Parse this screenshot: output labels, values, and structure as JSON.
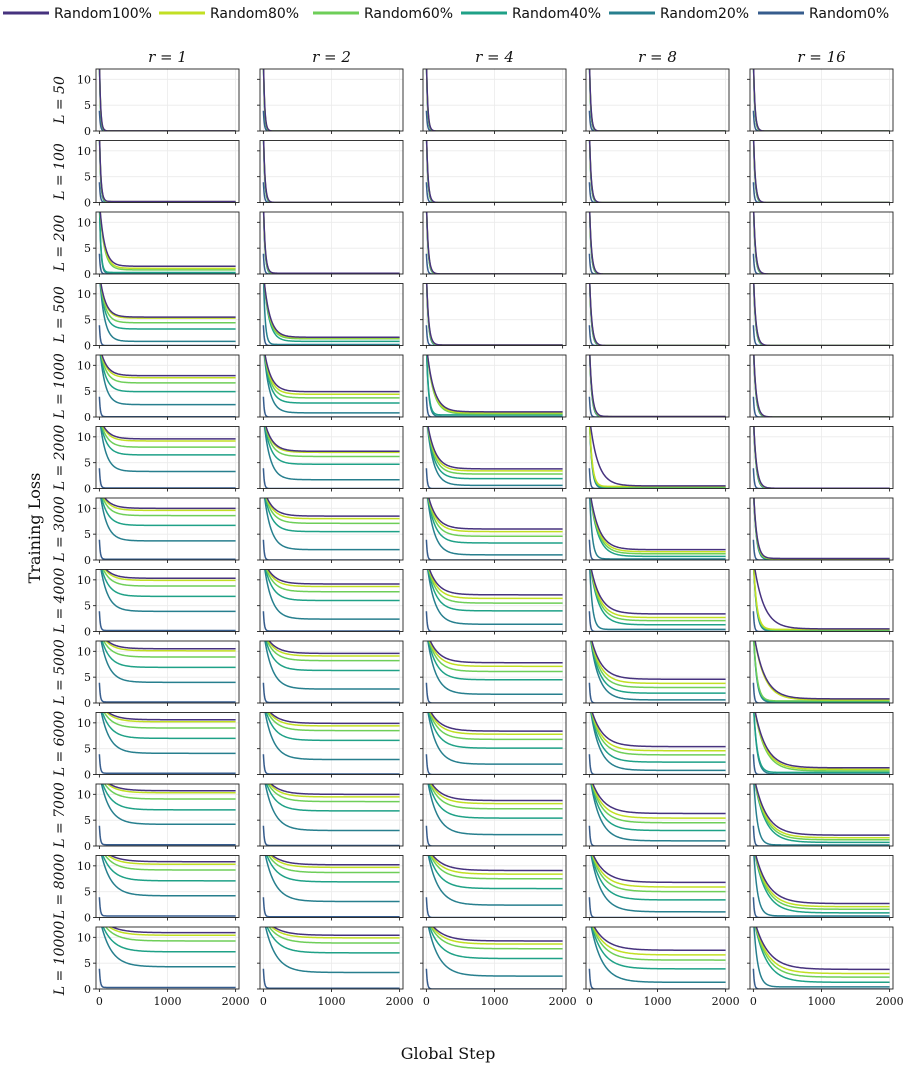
{
  "chart_data": {
    "type": "line",
    "xlabel": "Global Step",
    "ylabel": "Training Loss",
    "xlim": [
      -50,
      2050
    ],
    "ylim": [
      0,
      12
    ],
    "x_ticks": [
      0,
      1000,
      2000
    ],
    "x_tick_labels": [
      "0",
      "1000",
      "2000"
    ],
    "y_ticks": [
      0,
      5,
      10
    ],
    "y_tick_labels": [
      "0",
      "5",
      "10"
    ],
    "grid": true,
    "legend_position": "top",
    "column_labels": [
      "r = 1",
      "r = 2",
      "r = 4",
      "r = 8",
      "r = 16"
    ],
    "row_labels": [
      "L = 50",
      "L = 100",
      "L = 200",
      "L = 500",
      "L = 1000",
      "L = 2000",
      "L = 3000",
      "L = 4000",
      "L = 5000",
      "L = 6000",
      "L = 7000",
      "L = 8000",
      "L = 10000"
    ],
    "series": [
      {
        "name": "Random100%",
        "color": "#46327e"
      },
      {
        "name": "Random80%",
        "color": "#c2df23"
      },
      {
        "name": "Random60%",
        "color": "#6ece58"
      },
      {
        "name": "Random40%",
        "color": "#1fa187"
      },
      {
        "name": "Random20%",
        "color": "#277f8e"
      },
      {
        "name": "Random0%",
        "color": "#365c8d"
      }
    ],
    "final_loss_by_row_col": [
      [
        [
          0.02,
          0.02,
          0.01,
          0.01,
          0.0,
          0.0
        ],
        [
          0.0,
          0.0,
          0.0,
          0.0,
          0.0,
          0.0
        ],
        [
          0.0,
          0.0,
          0.0,
          0.0,
          0.0,
          0.0
        ],
        [
          0.0,
          0.0,
          0.0,
          0.0,
          0.0,
          0.0
        ],
        [
          0.0,
          0.0,
          0.0,
          0.0,
          0.0,
          0.0
        ]
      ],
      [
        [
          0.2,
          0.18,
          0.15,
          0.1,
          0.05,
          0.0
        ],
        [
          0.02,
          0.02,
          0.02,
          0.01,
          0.0,
          0.0
        ],
        [
          0.0,
          0.0,
          0.0,
          0.0,
          0.0,
          0.0
        ],
        [
          0.0,
          0.0,
          0.0,
          0.0,
          0.0,
          0.0
        ],
        [
          0.0,
          0.0,
          0.0,
          0.0,
          0.0,
          0.0
        ]
      ],
      [
        [
          1.5,
          1.1,
          0.8,
          0.3,
          0.1,
          0.0
        ],
        [
          0.15,
          0.13,
          0.1,
          0.05,
          0.02,
          0.0
        ],
        [
          0.02,
          0.02,
          0.01,
          0.0,
          0.0,
          0.0
        ],
        [
          0.0,
          0.0,
          0.0,
          0.0,
          0.0,
          0.0
        ],
        [
          0.0,
          0.0,
          0.0,
          0.0,
          0.0,
          0.0
        ]
      ],
      [
        [
          5.5,
          5.3,
          4.4,
          3.2,
          0.8,
          0.0
        ],
        [
          1.6,
          1.5,
          1.3,
          0.8,
          0.2,
          0.0
        ],
        [
          0.1,
          0.1,
          0.08,
          0.05,
          0.02,
          0.0
        ],
        [
          0.0,
          0.0,
          0.0,
          0.0,
          0.0,
          0.0
        ],
        [
          0.0,
          0.0,
          0.0,
          0.0,
          0.0,
          0.0
        ]
      ],
      [
        [
          8.0,
          7.6,
          6.6,
          4.9,
          2.4,
          0.05
        ],
        [
          4.9,
          4.4,
          3.7,
          2.7,
          0.8,
          0.0
        ],
        [
          1.0,
          0.8,
          0.6,
          0.4,
          0.1,
          0.0
        ],
        [
          0.1,
          0.08,
          0.06,
          0.04,
          0.01,
          0.0
        ],
        [
          0.0,
          0.0,
          0.0,
          0.0,
          0.0,
          0.0
        ]
      ],
      [
        [
          9.6,
          9.2,
          8.0,
          6.5,
          3.3,
          0.1
        ],
        [
          7.2,
          7.0,
          6.2,
          4.7,
          1.7,
          0.0
        ],
        [
          3.8,
          3.4,
          2.8,
          1.9,
          0.6,
          0.0
        ],
        [
          0.5,
          0.4,
          0.3,
          0.2,
          0.05,
          0.0
        ],
        [
          0.05,
          0.04,
          0.03,
          0.02,
          0.0,
          0.0
        ]
      ],
      [
        [
          10.0,
          9.6,
          8.6,
          6.7,
          3.7,
          0.15
        ],
        [
          8.5,
          8.0,
          7.1,
          5.5,
          2.0,
          0.0
        ],
        [
          6.0,
          5.5,
          4.6,
          3.3,
          1.0,
          0.0
        ],
        [
          2.0,
          1.6,
          1.2,
          0.7,
          0.2,
          0.0
        ],
        [
          0.3,
          0.25,
          0.2,
          0.15,
          0.05,
          0.0
        ]
      ],
      [
        [
          10.3,
          9.9,
          8.8,
          6.8,
          3.9,
          0.2
        ],
        [
          9.2,
          8.7,
          7.7,
          6.0,
          2.4,
          0.1
        ],
        [
          7.1,
          6.4,
          5.5,
          4.0,
          1.4,
          0.0
        ],
        [
          3.4,
          2.7,
          2.1,
          1.3,
          0.4,
          0.0
        ],
        [
          0.5,
          0.4,
          0.3,
          0.2,
          0.05,
          0.0
        ]
      ],
      [
        [
          10.5,
          10.1,
          8.9,
          6.9,
          4.0,
          0.2
        ],
        [
          9.6,
          9.1,
          8.2,
          6.3,
          2.7,
          0.1
        ],
        [
          7.8,
          7.1,
          6.1,
          4.5,
          1.7,
          0.0
        ],
        [
          4.6,
          3.8,
          3.0,
          1.9,
          0.6,
          0.0
        ],
        [
          0.8,
          0.6,
          0.4,
          0.25,
          0.1,
          0.0
        ]
      ],
      [
        [
          10.6,
          10.2,
          9.0,
          7.0,
          4.1,
          0.25
        ],
        [
          9.9,
          9.4,
          8.5,
          6.6,
          2.9,
          0.1
        ],
        [
          8.4,
          7.8,
          6.8,
          5.1,
          2.0,
          0.0
        ],
        [
          5.4,
          4.6,
          3.8,
          2.4,
          0.8,
          0.0
        ],
        [
          1.3,
          1.0,
          0.7,
          0.4,
          0.1,
          0.0
        ]
      ],
      [
        [
          10.7,
          10.3,
          9.1,
          7.0,
          4.2,
          0.25
        ],
        [
          10.0,
          9.5,
          8.6,
          6.8,
          3.0,
          0.1
        ],
        [
          8.8,
          8.2,
          7.2,
          5.4,
          2.2,
          0.0
        ],
        [
          6.3,
          5.4,
          4.5,
          3.0,
          1.0,
          0.0
        ],
        [
          2.1,
          1.6,
          1.2,
          0.7,
          0.2,
          0.0
        ]
      ],
      [
        [
          10.8,
          10.3,
          9.2,
          7.1,
          4.2,
          0.3
        ],
        [
          10.2,
          9.7,
          8.7,
          6.9,
          3.1,
          0.15
        ],
        [
          9.1,
          8.4,
          7.5,
          5.6,
          2.4,
          0.0
        ],
        [
          6.8,
          5.9,
          5.0,
          3.4,
          1.1,
          0.0
        ],
        [
          2.7,
          2.1,
          1.6,
          0.9,
          0.3,
          0.0
        ]
      ],
      [
        [
          10.9,
          10.4,
          9.3,
          7.2,
          4.3,
          0.3
        ],
        [
          10.4,
          9.9,
          8.9,
          7.0,
          3.2,
          0.15
        ],
        [
          9.3,
          8.7,
          7.8,
          5.9,
          2.5,
          0.0
        ],
        [
          7.5,
          6.6,
          5.6,
          3.9,
          1.3,
          0.0
        ],
        [
          3.8,
          3.0,
          2.3,
          1.3,
          0.4,
          0.0
        ]
      ]
    ]
  }
}
